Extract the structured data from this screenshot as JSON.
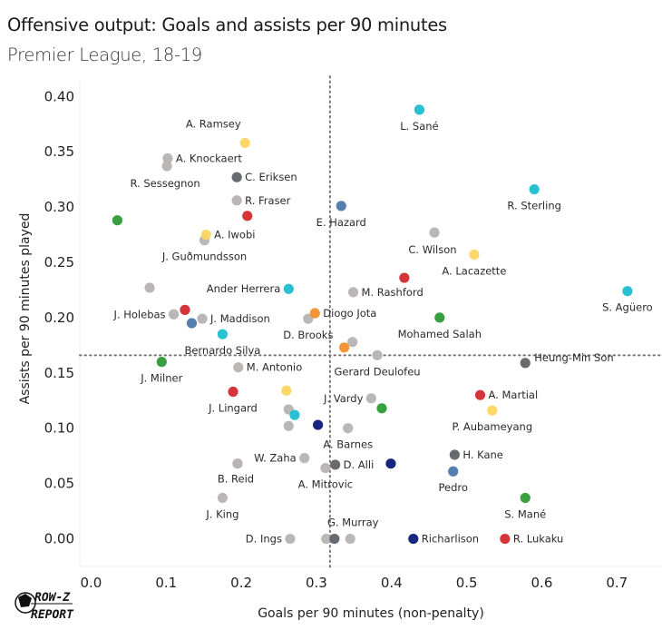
{
  "chart_data": {
    "type": "scatter",
    "title": "Offensive output: Goals and assists per 90 minutes",
    "subtitle": "Premier League, 18-19",
    "xlabel": "Goals per 90 minutes (non-penalty)",
    "ylabel": "Assists per 90 minutes played",
    "xlim": [
      -0.015,
      0.76
    ],
    "ylim": [
      -0.025,
      0.415
    ],
    "x_ticks": [
      0.0,
      0.1,
      0.2,
      0.3,
      0.4,
      0.5,
      0.6,
      0.7
    ],
    "x_tick_labels": [
      "0.0",
      "0.1",
      "0.2",
      "0.3",
      "0.4",
      "0.5",
      "0.6",
      "0.7"
    ],
    "y_ticks": [
      0.0,
      0.05,
      0.1,
      0.15,
      0.2,
      0.25,
      0.3,
      0.35,
      0.4
    ],
    "y_tick_labels": [
      "0.00",
      "0.05",
      "0.10",
      "0.15",
      "0.20",
      "0.25",
      "0.30",
      "0.35",
      "0.40"
    ],
    "reference_lines": {
      "x_mean": 0.318,
      "y_mean": 0.166,
      "style": "dotted"
    },
    "grid": false,
    "legend": "none",
    "team_colors": {
      "man_city": "#1ebdd0",
      "arsenal": "#fdd660",
      "other": "#b8b3b3",
      "tottenham": "#5f6368",
      "red_team": "#d12a2f",
      "liverpool": "#2e9b38",
      "chelsea": "#4a79a8",
      "wolves": "#f28e2b",
      "everton": "#0c1a7a"
    },
    "points": [
      {
        "name": "L. Sané",
        "x": 0.437,
        "y": 0.388,
        "team": "man_city",
        "label_pos": "below"
      },
      {
        "name": "A. Ramsey",
        "x": 0.205,
        "y": 0.358,
        "team": "arsenal",
        "label_pos": "above-left"
      },
      {
        "name": "A. Knockaert",
        "x": 0.102,
        "y": 0.344,
        "team": "other",
        "label_pos": "right"
      },
      {
        "name": "R. Sessegnon",
        "x": 0.101,
        "y": 0.337,
        "team": "other",
        "label_pos": "below-left"
      },
      {
        "name": "C. Eriksen",
        "x": 0.194,
        "y": 0.327,
        "team": "tottenham",
        "label_pos": "right"
      },
      {
        "name": "R. Fraser",
        "x": 0.194,
        "y": 0.306,
        "team": "other",
        "label_pos": "right"
      },
      {
        "name": "",
        "x": 0.208,
        "y": 0.292,
        "team": "red_team",
        "label_pos": "none"
      },
      {
        "name": "",
        "x": 0.035,
        "y": 0.288,
        "team": "liverpool",
        "label_pos": "none"
      },
      {
        "name": "E. Hazard",
        "x": 0.333,
        "y": 0.301,
        "team": "chelsea",
        "label_pos": "below"
      },
      {
        "name": "R. Sterling",
        "x": 0.59,
        "y": 0.316,
        "team": "man_city",
        "label_pos": "below"
      },
      {
        "name": "J. Guðmundsson",
        "x": 0.151,
        "y": 0.27,
        "team": "other",
        "label_pos": "below"
      },
      {
        "name": "A. Iwobi",
        "x": 0.153,
        "y": 0.275,
        "team": "arsenal",
        "label_pos": "right"
      },
      {
        "name": "C. Wilson",
        "x": 0.457,
        "y": 0.277,
        "team": "other",
        "label_pos": "below-left"
      },
      {
        "name": "A. Lacazette",
        "x": 0.51,
        "y": 0.257,
        "team": "arsenal",
        "label_pos": "below"
      },
      {
        "name": "",
        "x": 0.417,
        "y": 0.236,
        "team": "red_team",
        "label_pos": "none"
      },
      {
        "name": "M. Rashford",
        "x": 0.349,
        "y": 0.223,
        "team": "other",
        "label_pos": "right"
      },
      {
        "name": "S. Agüero",
        "x": 0.714,
        "y": 0.224,
        "team": "man_city",
        "label_pos": "below"
      },
      {
        "name": "",
        "x": 0.078,
        "y": 0.227,
        "team": "other",
        "label_pos": "none"
      },
      {
        "name": "Ander Herrera",
        "x": 0.263,
        "y": 0.226,
        "team": "man_city",
        "label_pos": "left"
      },
      {
        "name": "J. Holebas",
        "x": 0.11,
        "y": 0.203,
        "team": "other",
        "label_pos": "left"
      },
      {
        "name": "",
        "x": 0.125,
        "y": 0.207,
        "team": "red_team",
        "label_pos": "none"
      },
      {
        "name": "",
        "x": 0.134,
        "y": 0.195,
        "team": "chelsea",
        "label_pos": "none"
      },
      {
        "name": "J. Maddison",
        "x": 0.148,
        "y": 0.199,
        "team": "other",
        "label_pos": "right"
      },
      {
        "name": "Bernardo Silva",
        "x": 0.175,
        "y": 0.185,
        "team": "man_city",
        "label_pos": "below"
      },
      {
        "name": "D. Brooks",
        "x": 0.289,
        "y": 0.199,
        "team": "other",
        "label_pos": "below"
      },
      {
        "name": "Diogo Jota",
        "x": 0.298,
        "y": 0.204,
        "team": "wolves",
        "label_pos": "right"
      },
      {
        "name": "Mohamed Salah",
        "x": 0.464,
        "y": 0.2,
        "team": "liverpool",
        "label_pos": "below"
      },
      {
        "name": "",
        "x": 0.348,
        "y": 0.178,
        "team": "other",
        "label_pos": "none"
      },
      {
        "name": "",
        "x": 0.337,
        "y": 0.173,
        "team": "wolves",
        "label_pos": "none"
      },
      {
        "name": "Gerard Deulofeu",
        "x": 0.381,
        "y": 0.166,
        "team": "other",
        "label_pos": "below"
      },
      {
        "name": "J. Milner",
        "x": 0.094,
        "y": 0.16,
        "team": "liverpool",
        "label_pos": "below"
      },
      {
        "name": "Heung-Min Son",
        "x": 0.578,
        "y": 0.159,
        "team": "tottenham",
        "label_pos": "right-up"
      },
      {
        "name": "M. Antonio",
        "x": 0.196,
        "y": 0.155,
        "team": "other",
        "label_pos": "right"
      },
      {
        "name": "J. Lingard",
        "x": 0.189,
        "y": 0.133,
        "team": "red_team",
        "label_pos": "below"
      },
      {
        "name": "",
        "x": 0.26,
        "y": 0.134,
        "team": "arsenal",
        "label_pos": "none"
      },
      {
        "name": "A. Martial",
        "x": 0.518,
        "y": 0.13,
        "team": "red_team",
        "label_pos": "right"
      },
      {
        "name": "J. Vardy",
        "x": 0.373,
        "y": 0.127,
        "team": "other",
        "label_pos": "left"
      },
      {
        "name": "",
        "x": 0.387,
        "y": 0.118,
        "team": "liverpool",
        "label_pos": "none"
      },
      {
        "name": "",
        "x": 0.263,
        "y": 0.117,
        "team": "other",
        "label_pos": "none"
      },
      {
        "name": "",
        "x": 0.271,
        "y": 0.112,
        "team": "man_city",
        "label_pos": "none"
      },
      {
        "name": "P. Aubameyang",
        "x": 0.534,
        "y": 0.116,
        "team": "arsenal",
        "label_pos": "below"
      },
      {
        "name": "",
        "x": 0.302,
        "y": 0.103,
        "team": "everton",
        "label_pos": "none"
      },
      {
        "name": "",
        "x": 0.263,
        "y": 0.102,
        "team": "other",
        "label_pos": "none"
      },
      {
        "name": "A. Barnes",
        "x": 0.342,
        "y": 0.1,
        "team": "other",
        "label_pos": "below"
      },
      {
        "name": "H. Kane",
        "x": 0.484,
        "y": 0.076,
        "team": "tottenham",
        "label_pos": "right"
      },
      {
        "name": "W. Zaha",
        "x": 0.284,
        "y": 0.073,
        "team": "other",
        "label_pos": "left"
      },
      {
        "name": "",
        "x": 0.195,
        "y": 0.068,
        "team": "other",
        "label_pos": "none"
      },
      {
        "name": "D. Alli",
        "x": 0.325,
        "y": 0.067,
        "team": "tottenham",
        "label_pos": "right"
      },
      {
        "name": "",
        "x": 0.399,
        "y": 0.068,
        "team": "everton",
        "label_pos": "none"
      },
      {
        "name": "A. Mitrovic",
        "x": 0.312,
        "y": 0.064,
        "team": "other",
        "label_pos": "below"
      },
      {
        "name": "B. Reid",
        "x": 0.195,
        "y": 0.068,
        "team": "other",
        "label_pos": "below-only"
      },
      {
        "name": "Pedro",
        "x": 0.482,
        "y": 0.061,
        "team": "chelsea",
        "label_pos": "below"
      },
      {
        "name": "J. King",
        "x": 0.175,
        "y": 0.037,
        "team": "other",
        "label_pos": "below"
      },
      {
        "name": "S. Mané",
        "x": 0.578,
        "y": 0.037,
        "team": "liverpool",
        "label_pos": "below"
      },
      {
        "name": "D. Ings",
        "x": 0.265,
        "y": 0.0,
        "team": "other",
        "label_pos": "left"
      },
      {
        "name": "",
        "x": 0.313,
        "y": 0.0,
        "team": "other",
        "label_pos": "none"
      },
      {
        "name": "",
        "x": 0.324,
        "y": 0.0,
        "team": "tottenham",
        "label_pos": "none"
      },
      {
        "name": "G. Murray",
        "x": 0.345,
        "y": 0.0,
        "team": "other",
        "label_pos": "above-right"
      },
      {
        "name": "Richarlison",
        "x": 0.429,
        "y": 0.0,
        "team": "everton",
        "label_pos": "right"
      },
      {
        "name": "R. Lukaku",
        "x": 0.551,
        "y": 0.0,
        "team": "red_team",
        "label_pos": "right"
      }
    ]
  },
  "branding": {
    "logo_line1": "ROW-Z",
    "logo_line2": "REPORT",
    "logo_icon": "soccer-ball-icon"
  }
}
